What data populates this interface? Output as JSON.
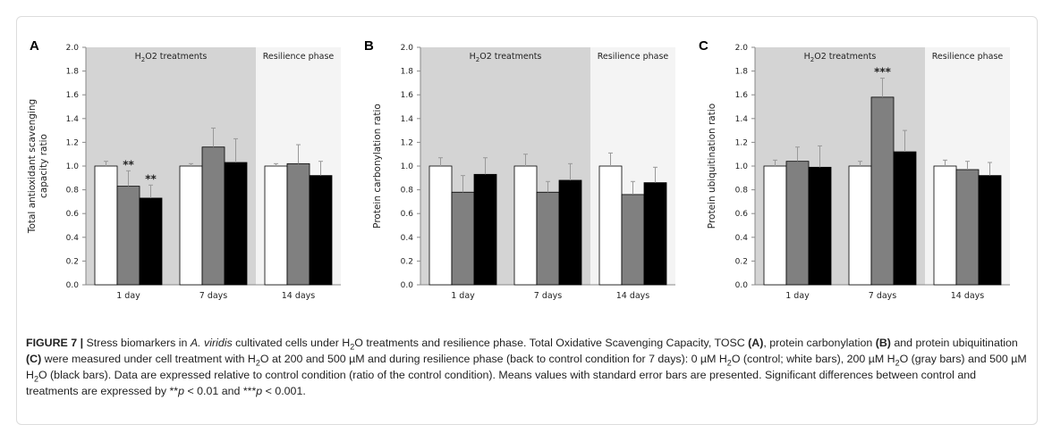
{
  "chart_data": [
    {
      "type": "bar",
      "panel_label": "A",
      "ylabel": "Total antioxidant scavenging capacity ratio",
      "ylim": [
        0,
        2.0
      ],
      "yticks": [
        "0.0",
        "0.2",
        "0.4",
        "0.6",
        "0.8",
        "1.0",
        "1.2",
        "1.4",
        "1.6",
        "1.8",
        "2.0"
      ],
      "categories": [
        "1 day",
        "7 days",
        "14 days"
      ],
      "region_labels": [
        "H2O2 treatments",
        "Resilience phase"
      ],
      "series": [
        {
          "color": "#ffffff",
          "values": [
            1.0,
            1.0,
            1.0
          ],
          "errors": [
            0.04,
            0.02,
            0.02
          ]
        },
        {
          "color": "#808080",
          "values": [
            0.83,
            1.16,
            1.02
          ],
          "errors": [
            0.13,
            0.16,
            0.16
          ]
        },
        {
          "color": "#000000",
          "values": [
            0.73,
            1.03,
            0.92
          ],
          "errors": [
            0.11,
            0.2,
            0.12
          ]
        }
      ],
      "annotations": [
        {
          "category": 0,
          "series": 1,
          "text": "**"
        },
        {
          "category": 0,
          "series": 2,
          "text": "**"
        }
      ]
    },
    {
      "type": "bar",
      "panel_label": "B",
      "ylabel": "Protein carbonylation ratio",
      "ylim": [
        0,
        2.0
      ],
      "yticks": [
        "0.0",
        "0.2",
        "0.4",
        "0.6",
        "0.8",
        "1.0",
        "1.2",
        "1.4",
        "1.6",
        "1.8",
        "2.0"
      ],
      "categories": [
        "1 day",
        "7 days",
        "14 days"
      ],
      "region_labels": [
        "H2O2 treatments",
        "Resilience phase"
      ],
      "series": [
        {
          "color": "#ffffff",
          "values": [
            1.0,
            1.0,
            1.0
          ],
          "errors": [
            0.07,
            0.1,
            0.11
          ]
        },
        {
          "color": "#808080",
          "values": [
            0.78,
            0.78,
            0.76
          ],
          "errors": [
            0.14,
            0.09,
            0.11
          ]
        },
        {
          "color": "#000000",
          "values": [
            0.93,
            0.88,
            0.86
          ],
          "errors": [
            0.14,
            0.14,
            0.13
          ]
        }
      ],
      "annotations": []
    },
    {
      "type": "bar",
      "panel_label": "C",
      "ylabel": "Protein ubiquitination  ratio",
      "ylim": [
        0,
        2.0
      ],
      "yticks": [
        "0.0",
        "0.2",
        "0.4",
        "0.6",
        "0.8",
        "1.0",
        "1.2",
        "1.4",
        "1.6",
        "1.8",
        "2.0"
      ],
      "categories": [
        "1 day",
        "7 days",
        "14 days"
      ],
      "region_labels": [
        "H2O2 treatments",
        "Resilience phase"
      ],
      "series": [
        {
          "color": "#ffffff",
          "values": [
            1.0,
            1.0,
            1.0
          ],
          "errors": [
            0.05,
            0.04,
            0.05
          ]
        },
        {
          "color": "#808080",
          "values": [
            1.04,
            1.58,
            0.97
          ],
          "errors": [
            0.12,
            0.16,
            0.07
          ]
        },
        {
          "color": "#000000",
          "values": [
            0.99,
            1.12,
            0.92
          ],
          "errors": [
            0.18,
            0.18,
            0.11
          ]
        }
      ],
      "annotations": [
        {
          "category": 1,
          "series": 1,
          "text": "***"
        }
      ]
    }
  ],
  "caption": {
    "figure_label": "FIGURE 7 |",
    "s1": " Stress biomarkers in ",
    "species": "A. viridis",
    "s2": " cultivated cells under H",
    "s3": "O",
    "s4": " treatments and resilience phase. Total Oxidative Scavenging Capacity, TOSC ",
    "refA": "(A)",
    "s5": ", protein carbonylation ",
    "refB": "(B)",
    "s6": " and protein ubiquitination ",
    "refC": "(C)",
    "s7": " were measured under cell treatment with H",
    "s8": "O",
    "s9": " at 200 and 500 µM and during resilience phase (back to control condition for 7 days): 0 µM H",
    "s10": "O",
    "s11": " (control; white bars), 200 µM H",
    "s12": "O",
    "s13": " (gray bars) and 500 µM H",
    "s14": "O",
    "s15": " (black bars). Data are expressed relative to control condition (ratio of the control condition). Means values with standard error bars are presented. Significant differences between control and treatments are expressed by **",
    "p1": "p",
    "s16": " < 0.01 and ***",
    "p2": "p",
    "s17": " < 0.001.",
    "sub2": "2"
  },
  "colors": {
    "treatment_region": "#d4d4d4",
    "resilience_region": "#f4f4f4",
    "axis": "#888888",
    "error_bar": "#999999"
  }
}
